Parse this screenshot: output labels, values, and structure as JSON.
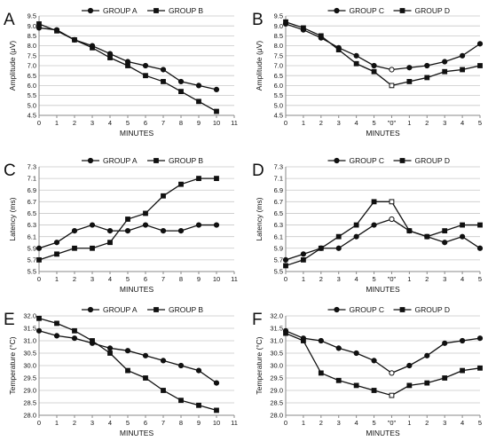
{
  "chart_data": [
    {
      "panel": "A",
      "type": "line",
      "xlabel": "MINUTES",
      "ylabel": "Amplitude (μV)",
      "xlim": [
        0,
        11
      ],
      "ylim": [
        4.5,
        9.5
      ],
      "xticks": [
        "0",
        "1",
        "2",
        "3",
        "4",
        "5",
        "6",
        "7",
        "8",
        "9",
        "10",
        "11"
      ],
      "yticks": [
        "4.5",
        "5.0",
        "5.5",
        "6.0",
        "6.5",
        "7.0",
        "7.5",
        "8.0",
        "8.5",
        "9.0",
        "9.5"
      ],
      "legend_placement": "top",
      "series": [
        {
          "name": "GROUP A",
          "marker": "circle",
          "x": [
            0,
            1,
            2,
            3,
            4,
            5,
            6,
            7,
            8,
            9,
            10
          ],
          "y": [
            8.9,
            8.8,
            8.3,
            8.0,
            7.6,
            7.2,
            7.0,
            6.8,
            6.2,
            6.0,
            5.8
          ]
        },
        {
          "name": "GROUP B",
          "marker": "square",
          "x": [
            0,
            1,
            2,
            3,
            4,
            5,
            6,
            7,
            8,
            9,
            10
          ],
          "y": [
            9.1,
            8.75,
            8.3,
            7.9,
            7.4,
            7.0,
            6.5,
            6.2,
            5.7,
            5.2,
            4.7
          ]
        }
      ]
    },
    {
      "panel": "B",
      "type": "line",
      "xlabel": "MINUTES",
      "ylabel": "Amplitude (μV)",
      "xlim": [
        0,
        10
      ],
      "ylim": [
        4.5,
        9.5
      ],
      "xticks": [
        "0",
        "1",
        "2",
        "3",
        "4",
        "5",
        "\"0\"",
        "1",
        "2",
        "3",
        "4",
        "5"
      ],
      "yticks": [
        "4.5",
        "5.0",
        "5.5",
        "6.0",
        "6.5",
        "7.0",
        "7.5",
        "8.0",
        "8.5",
        "9.0",
        "9.5"
      ],
      "legend_placement": "top",
      "series": [
        {
          "name": "GROUP C",
          "marker": "circle",
          "x": [
            0,
            1,
            2,
            3,
            4,
            5,
            6,
            7,
            8,
            9,
            10,
            11
          ],
          "y": [
            9.1,
            8.8,
            8.4,
            7.9,
            7.5,
            7.0,
            6.8,
            6.9,
            7.0,
            7.2,
            7.5,
            8.1
          ]
        },
        {
          "name": "GROUP D",
          "marker": "square",
          "x": [
            0,
            1,
            2,
            3,
            4,
            5,
            6,
            7,
            8,
            9,
            10,
            11
          ],
          "y": [
            9.2,
            8.9,
            8.5,
            7.8,
            7.1,
            6.7,
            6.0,
            6.2,
            6.4,
            6.7,
            6.8,
            7.0
          ]
        }
      ]
    },
    {
      "panel": "C",
      "type": "line",
      "xlabel": "MINUTES",
      "ylabel": "Latency (ms)",
      "xlim": [
        0,
        11
      ],
      "ylim": [
        5.5,
        7.3
      ],
      "xticks": [
        "0",
        "1",
        "2",
        "3",
        "4",
        "5",
        "6",
        "7",
        "8",
        "9",
        "10",
        "11"
      ],
      "yticks": [
        "5.5",
        "5.7",
        "5.9",
        "6.1",
        "6.3",
        "6.5",
        "6.7",
        "6.9",
        "7.1",
        "7.3"
      ],
      "legend_placement": "top",
      "series": [
        {
          "name": "GROUP A",
          "marker": "circle",
          "x": [
            0,
            1,
            2,
            3,
            4,
            5,
            6,
            7,
            8,
            9,
            10
          ],
          "y": [
            5.9,
            6.0,
            6.2,
            6.3,
            6.2,
            6.2,
            6.3,
            6.2,
            6.2,
            6.3,
            6.3
          ]
        },
        {
          "name": "GROUP B",
          "marker": "square",
          "x": [
            0,
            1,
            2,
            3,
            4,
            5,
            6,
            7,
            8,
            9,
            10
          ],
          "y": [
            5.7,
            5.8,
            5.9,
            5.9,
            6.0,
            6.4,
            6.5,
            6.8,
            7.0,
            7.1,
            7.1
          ]
        }
      ]
    },
    {
      "panel": "D",
      "type": "line",
      "xlabel": "MINUTES",
      "ylabel": "Latency (ms)",
      "xlim": [
        0,
        10
      ],
      "ylim": [
        5.5,
        7.3
      ],
      "xticks": [
        "0",
        "1",
        "2",
        "3",
        "4",
        "5",
        "\"0\"",
        "1",
        "2",
        "3",
        "4",
        "5"
      ],
      "yticks": [
        "5.5",
        "5.7",
        "5.9",
        "6.1",
        "6.3",
        "6.5",
        "6.7",
        "6.9",
        "7.1",
        "7.3"
      ],
      "legend_placement": "top",
      "series": [
        {
          "name": "GROUP C",
          "marker": "circle",
          "x": [
            0,
            1,
            2,
            3,
            4,
            5,
            6,
            7,
            8,
            9,
            10,
            11
          ],
          "y": [
            5.7,
            5.8,
            5.9,
            5.9,
            6.1,
            6.3,
            6.4,
            6.2,
            6.1,
            6.0,
            6.1,
            5.9
          ]
        },
        {
          "name": "GROUP D",
          "marker": "square",
          "x": [
            0,
            1,
            2,
            3,
            4,
            5,
            6,
            7,
            8,
            9,
            10,
            11
          ],
          "y": [
            5.6,
            5.7,
            5.9,
            6.1,
            6.3,
            6.7,
            6.7,
            6.2,
            6.1,
            6.2,
            6.3,
            6.3
          ]
        }
      ]
    },
    {
      "panel": "E",
      "type": "line",
      "xlabel": "MINUTES",
      "ylabel": "Temperature (°C)",
      "xlim": [
        0,
        11
      ],
      "ylim": [
        28.0,
        32.0
      ],
      "xticks": [
        "0",
        "1",
        "2",
        "3",
        "4",
        "5",
        "6",
        "7",
        "8",
        "9",
        "10",
        "11"
      ],
      "yticks": [
        "28.0",
        "28.5",
        "29.0",
        "29.5",
        "30.0",
        "30.5",
        "31.0",
        "31.5",
        "32.0"
      ],
      "legend_placement": "top",
      "series": [
        {
          "name": "GROUP A",
          "marker": "circle",
          "x": [
            0,
            1,
            2,
            3,
            4,
            5,
            6,
            7,
            8,
            9,
            10
          ],
          "y": [
            31.4,
            31.2,
            31.1,
            30.9,
            30.7,
            30.6,
            30.4,
            30.2,
            30.0,
            29.8,
            29.3
          ]
        },
        {
          "name": "GROUP B",
          "marker": "square",
          "x": [
            0,
            1,
            2,
            3,
            4,
            5,
            6,
            7,
            8,
            9,
            10
          ],
          "y": [
            31.9,
            31.7,
            31.4,
            31.0,
            30.5,
            29.8,
            29.5,
            29.0,
            28.6,
            28.4,
            28.2
          ]
        }
      ]
    },
    {
      "panel": "F",
      "type": "line",
      "xlabel": "MINUTES",
      "ylabel": "Temperature (°C)",
      "xlim": [
        0,
        10
      ],
      "ylim": [
        28.0,
        32.0
      ],
      "xticks": [
        "0",
        "1",
        "2",
        "3",
        "4",
        "5",
        "\"0\"",
        "1",
        "2",
        "3",
        "4",
        "5"
      ],
      "yticks": [
        "28.0",
        "28.5",
        "29.0",
        "29.5",
        "30.0",
        "30.5",
        "31.0",
        "31.5",
        "32.0"
      ],
      "legend_placement": "top",
      "series": [
        {
          "name": "GROUP C",
          "marker": "circle",
          "x": [
            0,
            1,
            2,
            3,
            4,
            5,
            6,
            7,
            8,
            9,
            10,
            11
          ],
          "y": [
            31.4,
            31.1,
            31.0,
            30.7,
            30.5,
            30.2,
            29.7,
            30.0,
            30.4,
            30.9,
            31.0,
            31.1
          ]
        },
        {
          "name": "GROUP D",
          "marker": "square",
          "x": [
            0,
            1,
            2,
            3,
            4,
            5,
            6,
            7,
            8,
            9,
            10,
            11
          ],
          "y": [
            31.3,
            31.0,
            29.7,
            29.4,
            29.2,
            29.0,
            28.8,
            29.2,
            29.3,
            29.5,
            29.8,
            29.9
          ]
        }
      ]
    }
  ],
  "style": {
    "line_color": "#111111",
    "grid_color": "#c8c8c8",
    "axis_color": "#888888",
    "open_marker_fill": "#ffffff"
  }
}
